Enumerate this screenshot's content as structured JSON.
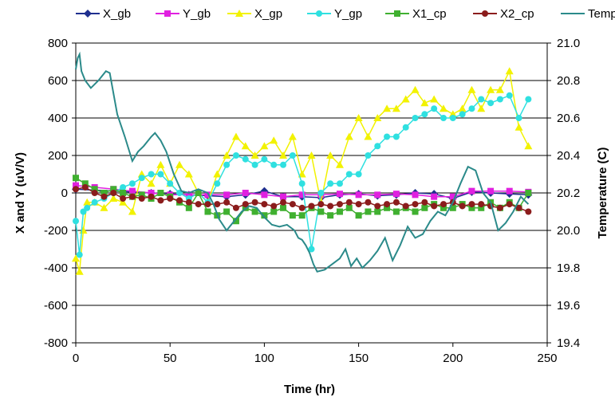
{
  "chart_data": {
    "type": "line",
    "xlabel": "Time (hr)",
    "ylabel": "X and Y (uV/V)",
    "y2label": "Temperature (C)",
    "xlim": [
      0,
      250
    ],
    "ylim": [
      -800,
      800
    ],
    "y2lim": [
      19.4,
      21.0
    ],
    "xticks": [
      0,
      50,
      100,
      150,
      200,
      250
    ],
    "yticks": [
      -800,
      -600,
      -400,
      -200,
      0,
      200,
      400,
      600,
      800
    ],
    "y2ticks": [
      "19.4",
      "19.6",
      "19.8",
      "20.0",
      "20.2",
      "20.4",
      "20.6",
      "20.8",
      "21.0"
    ],
    "grid": true,
    "legend_position": "top",
    "series": [
      {
        "name": "X_gb",
        "color": "#1f2f8f",
        "marker": "diamond",
        "axis": "left",
        "x": [
          0,
          10,
          20,
          30,
          40,
          50,
          60,
          70,
          80,
          90,
          100,
          110,
          120,
          130,
          140,
          150,
          160,
          170,
          180,
          190,
          200,
          210,
          220,
          230,
          240
        ],
        "y": [
          20,
          15,
          10,
          5,
          0,
          -5,
          -10,
          -15,
          -20,
          -10,
          10,
          -20,
          -20,
          -25,
          -10,
          -5,
          -15,
          -10,
          0,
          -5,
          -30,
          5,
          0,
          -5,
          -10
        ]
      },
      {
        "name": "Y_gb",
        "color": "#e020e0",
        "marker": "square",
        "axis": "left",
        "x": [
          0,
          10,
          20,
          30,
          40,
          50,
          60,
          70,
          80,
          90,
          100,
          110,
          120,
          130,
          140,
          150,
          160,
          170,
          180,
          190,
          200,
          210,
          220,
          230,
          240
        ],
        "y": [
          40,
          30,
          20,
          10,
          0,
          -10,
          -10,
          -10,
          -10,
          0,
          -10,
          -20,
          -10,
          -10,
          -5,
          -10,
          -10,
          -5,
          -10,
          -20,
          -20,
          10,
          10,
          10,
          5
        ]
      },
      {
        "name": "X_gp",
        "color": "#f2f200",
        "marker": "triangle",
        "axis": "left",
        "x": [
          0,
          2,
          4,
          6,
          10,
          15,
          20,
          25,
          30,
          35,
          40,
          45,
          50,
          55,
          60,
          65,
          70,
          75,
          80,
          85,
          90,
          95,
          100,
          105,
          110,
          115,
          120,
          125,
          130,
          135,
          140,
          145,
          150,
          155,
          160,
          165,
          170,
          175,
          180,
          185,
          190,
          195,
          200,
          205,
          210,
          215,
          220,
          225,
          230,
          235,
          240
        ],
        "y": [
          -350,
          -420,
          -200,
          -50,
          -50,
          -80,
          -30,
          -50,
          -100,
          100,
          50,
          150,
          50,
          150,
          100,
          0,
          -50,
          100,
          200,
          300,
          250,
          200,
          250,
          280,
          200,
          300,
          100,
          200,
          -50,
          200,
          150,
          300,
          400,
          300,
          400,
          450,
          450,
          500,
          550,
          480,
          500,
          450,
          420,
          450,
          550,
          450,
          550,
          550,
          650,
          350,
          250
        ]
      },
      {
        "name": "Y_gp",
        "color": "#2fe0e0",
        "marker": "circle",
        "axis": "left",
        "x": [
          0,
          2,
          4,
          6,
          10,
          15,
          20,
          25,
          30,
          35,
          40,
          45,
          50,
          55,
          60,
          65,
          70,
          75,
          80,
          85,
          90,
          95,
          100,
          105,
          110,
          115,
          120,
          125,
          130,
          135,
          140,
          145,
          150,
          155,
          160,
          165,
          170,
          175,
          180,
          185,
          190,
          195,
          200,
          205,
          210,
          215,
          220,
          225,
          230,
          235,
          240
        ],
        "y": [
          -150,
          -330,
          -100,
          -80,
          -50,
          -30,
          0,
          30,
          50,
          80,
          100,
          100,
          50,
          0,
          -30,
          0,
          -50,
          50,
          150,
          200,
          180,
          150,
          180,
          150,
          150,
          200,
          50,
          -300,
          0,
          50,
          50,
          100,
          100,
          200,
          250,
          300,
          300,
          350,
          400,
          420,
          450,
          400,
          400,
          420,
          450,
          500,
          480,
          500,
          520,
          400,
          500
        ]
      },
      {
        "name": "X1_cp",
        "color": "#40b030",
        "marker": "square",
        "axis": "left",
        "x": [
          0,
          5,
          10,
          15,
          20,
          25,
          30,
          35,
          40,
          45,
          50,
          55,
          60,
          65,
          70,
          75,
          80,
          85,
          90,
          95,
          100,
          105,
          110,
          115,
          120,
          125,
          130,
          135,
          140,
          145,
          150,
          155,
          160,
          165,
          170,
          175,
          180,
          185,
          190,
          195,
          200,
          205,
          210,
          215,
          220,
          225,
          230,
          235,
          240
        ],
        "y": [
          80,
          50,
          20,
          0,
          20,
          0,
          -20,
          -10,
          -30,
          0,
          -20,
          -50,
          -80,
          0,
          -100,
          -120,
          -100,
          -150,
          -80,
          -100,
          -120,
          -100,
          -80,
          -120,
          -120,
          -80,
          -100,
          -120,
          -100,
          -80,
          -120,
          -100,
          -100,
          -80,
          -100,
          -80,
          -100,
          -80,
          -60,
          -80,
          -80,
          -60,
          -80,
          -80,
          -50,
          -80,
          -50,
          -80,
          0
        ]
      },
      {
        "name": "X2_cp",
        "color": "#8b1c1c",
        "marker": "circle",
        "axis": "left",
        "x": [
          0,
          5,
          10,
          15,
          20,
          25,
          30,
          35,
          40,
          45,
          50,
          55,
          60,
          65,
          70,
          75,
          80,
          85,
          90,
          95,
          100,
          105,
          110,
          115,
          120,
          125,
          130,
          135,
          140,
          145,
          150,
          155,
          160,
          165,
          170,
          175,
          180,
          185,
          190,
          195,
          200,
          205,
          210,
          215,
          220,
          225,
          230,
          235,
          240
        ],
        "y": [
          20,
          30,
          0,
          -20,
          0,
          -30,
          -20,
          -30,
          -20,
          -40,
          -30,
          -40,
          -50,
          -60,
          -60,
          -60,
          -50,
          -80,
          -60,
          -50,
          -60,
          -70,
          -50,
          -60,
          -80,
          -70,
          -60,
          -70,
          -60,
          -50,
          -60,
          -50,
          -70,
          -60,
          -50,
          -70,
          -60,
          -50,
          -70,
          -60,
          -50,
          -70,
          -60,
          -60,
          -70,
          -80,
          -60,
          -80,
          -100
        ]
      },
      {
        "name": "Temp",
        "color": "#2b8a8a",
        "marker": "none",
        "axis": "right",
        "x": [
          0,
          1,
          2,
          3,
          5,
          8,
          12,
          16,
          18,
          22,
          26,
          30,
          33,
          36,
          40,
          42,
          45,
          48,
          52,
          56,
          60,
          65,
          70,
          73,
          76,
          80,
          84,
          88,
          92,
          96,
          100,
          104,
          108,
          112,
          116,
          118,
          120,
          122,
          124,
          126,
          128,
          132,
          136,
          140,
          143,
          146,
          149,
          152,
          156,
          160,
          164,
          168,
          172,
          176,
          180,
          184,
          188,
          192,
          196,
          200,
          204,
          208,
          212,
          216,
          220,
          224,
          228,
          232,
          236,
          240
        ],
        "y": [
          20.86,
          20.92,
          20.94,
          20.85,
          20.8,
          20.76,
          20.8,
          20.85,
          20.84,
          20.62,
          20.5,
          20.37,
          20.42,
          20.45,
          20.5,
          20.52,
          20.48,
          20.42,
          20.3,
          20.21,
          20.2,
          20.22,
          20.2,
          20.14,
          20.06,
          20.0,
          20.05,
          20.1,
          20.13,
          20.12,
          20.07,
          20.03,
          20.02,
          20.03,
          20.0,
          19.96,
          19.95,
          19.92,
          19.88,
          19.82,
          19.78,
          19.79,
          19.82,
          19.85,
          19.9,
          19.81,
          19.85,
          19.8,
          19.84,
          19.89,
          19.96,
          19.84,
          19.92,
          20.02,
          19.96,
          19.98,
          20.05,
          20.1,
          20.08,
          20.15,
          20.25,
          20.34,
          20.32,
          20.2,
          20.15,
          20.0,
          20.04,
          20.1,
          20.18,
          20.14
        ]
      }
    ]
  }
}
